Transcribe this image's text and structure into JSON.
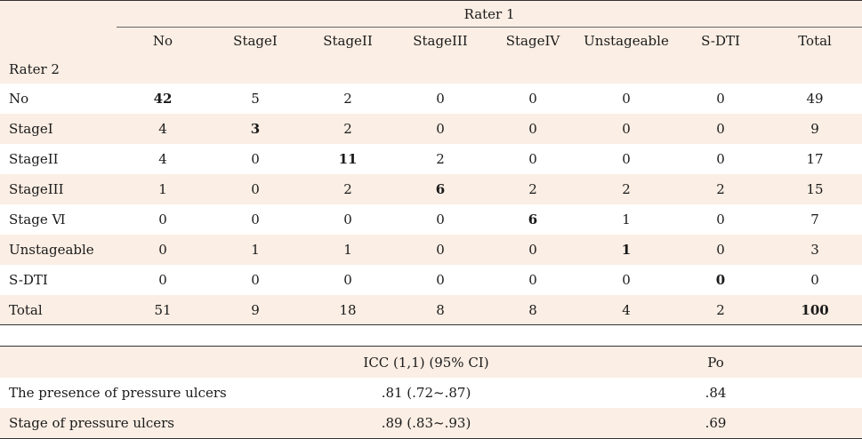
{
  "agreement_table": {
    "rater1_label": "Rater  1",
    "rater2_label": "Rater 2",
    "columns": [
      "No",
      "StageI",
      "StageII",
      "StageIII",
      "StageIV",
      "Unstageable",
      "S-DTI",
      "Total"
    ],
    "rows": [
      {
        "label": "No",
        "values": [
          "42",
          "5",
          "2",
          "0",
          "0",
          "0",
          "0",
          "49"
        ],
        "bold_index": 0
      },
      {
        "label": "StageI",
        "values": [
          "4",
          "3",
          "2",
          "0",
          "0",
          "0",
          "0",
          "9"
        ],
        "bold_index": 1
      },
      {
        "label": "StageII",
        "values": [
          "4",
          "0",
          "11",
          "2",
          "0",
          "0",
          "0",
          "17"
        ],
        "bold_index": 2
      },
      {
        "label": "StageIII",
        "values": [
          "1",
          "0",
          "2",
          "6",
          "2",
          "2",
          "2",
          "15"
        ],
        "bold_index": 3
      },
      {
        "label": "Stage Ⅵ",
        "values": [
          "0",
          "0",
          "0",
          "0",
          "6",
          "1",
          "0",
          "7"
        ],
        "bold_index": 4
      },
      {
        "label": "Unstageable",
        "values": [
          "0",
          "1",
          "1",
          "0",
          "0",
          "1",
          "0",
          "3"
        ],
        "bold_index": 5
      },
      {
        "label": "S-DTI",
        "values": [
          "0",
          "0",
          "0",
          "0",
          "0",
          "0",
          "0",
          "0"
        ],
        "bold_index": 6
      },
      {
        "label": "Total",
        "values": [
          "51",
          "9",
          "18",
          "8",
          "8",
          "4",
          "2",
          "100"
        ],
        "bold_index": 7
      }
    ]
  },
  "reliability_table": {
    "headers": [
      "",
      "ICC (1,1) (95% CI)",
      "Po"
    ],
    "rows": [
      {
        "label": "The presence of pressure ulcers",
        "icc": ".81 (.72~.87)",
        "po": ".84"
      },
      {
        "label": "Stage of pressure ulcers",
        "icc": ".89 (.83~.93)",
        "po": ".69"
      }
    ]
  },
  "colors": {
    "shade": "#fbeee4",
    "rule": "#333333"
  }
}
